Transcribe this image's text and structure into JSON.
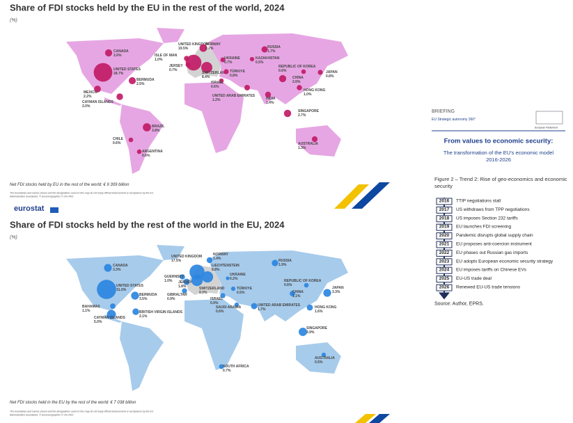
{
  "maps": [
    {
      "title": "Share of FDI stocks held by the EU in the rest of the world, 2024",
      "unit": "(%)",
      "points": [
        {
          "name": "CANADA",
          "value": 2.6,
          "value_label": "2.6%"
        },
        {
          "name": "UNITED STATES",
          "value": 28.7,
          "value_label": "28.7%"
        },
        {
          "name": "BERMUDA",
          "value": 2.5,
          "value_label": "2.5%"
        },
        {
          "name": "MEXICO",
          "value": 2.2,
          "value_label": "2.2%"
        },
        {
          "name": "CAYMAN ISLANDS",
          "value": 2.0,
          "value_label": "2.0%"
        },
        {
          "name": "BRAZIL",
          "value": 3.8,
          "value_label": "3.8%"
        },
        {
          "name": "CHILE",
          "value": 0.6,
          "value_label": "0.6%"
        },
        {
          "name": "ARGENTINA",
          "value": 0.6,
          "value_label": "0.6%"
        },
        {
          "name": "UNITED KINGDOM",
          "value": 19.5,
          "value_label": "19.5%"
        },
        {
          "name": "ISLE OF MAN",
          "value": 1.0,
          "value_label": "1.0%"
        },
        {
          "name": "JERSEY",
          "value": 0.7,
          "value_label": "0.7%"
        },
        {
          "name": "NORWAY",
          "value": 3.2,
          "value_label": "3.2%"
        },
        {
          "name": "SWITZERLAND",
          "value": 8.4,
          "value_label": "8.4%"
        },
        {
          "name": "UKRAINE",
          "value": 0.7,
          "value_label": "0.7%"
        },
        {
          "name": "TÜRKIYE",
          "value": 0.8,
          "value_label": "0.8%"
        },
        {
          "name": "ISRAEL",
          "value": 0.6,
          "value_label": "0.6%"
        },
        {
          "name": "UNITED ARAB EMIRATES",
          "value": 1.2,
          "value_label": "1.2%"
        },
        {
          "name": "RUSSIA",
          "value": 1.7,
          "value_label": "1.7%"
        },
        {
          "name": "KAZAKHSTAN",
          "value": 0.5,
          "value_label": "0.5%"
        },
        {
          "name": "REPUBLIC OF KOREA",
          "value": 0.6,
          "value_label": "0.6%"
        },
        {
          "name": "JAPAN",
          "value": 0.8,
          "value_label": "0.8%"
        },
        {
          "name": "CHINA",
          "value": 2.6,
          "value_label": "2.6%"
        },
        {
          "name": "HONG KONG",
          "value": 1.0,
          "value_label": "1.0%"
        },
        {
          "name": "INDIA",
          "value": 1.4,
          "value_label": "1.4%"
        },
        {
          "name": "SINGAPORE",
          "value": 2.7,
          "value_label": "2.7%"
        },
        {
          "name": "AUSTRALIA",
          "value": 1.3,
          "value_label": "1.3%"
        }
      ],
      "total_note": "Net FDI stocks held by EU in the rest of the world: € 9 309 billion",
      "disclaimer": "The boundaries and names shown and the designations used on this map do not imply official endorsement or acceptance by the EU.",
      "copyright": "Administrative boundaries: © EuroGeographics © UN–FAO"
    },
    {
      "title": "Share of FDI stocks held by the rest of the world in the EU, 2024",
      "unit": "(%)",
      "points": [
        {
          "name": "CANADA",
          "value": 3.3,
          "value_label": "3.3%"
        },
        {
          "name": "UNITED STATES",
          "value": 31.0,
          "value_label": "31.0%"
        },
        {
          "name": "BERMUDA",
          "value": 3.5,
          "value_label": "3.5%"
        },
        {
          "name": "BAHAMAS",
          "value": 1.1,
          "value_label": "1.1%"
        },
        {
          "name": "BRITISH VIRGIN ISLANDS",
          "value": 2.1,
          "value_label": "2.1%"
        },
        {
          "name": "CAYMAN ISLANDS",
          "value": 5.0,
          "value_label": "5.0%"
        },
        {
          "name": "UNITED KINGDOM",
          "value": 17.5,
          "value_label": "17.5%"
        },
        {
          "name": "NORWAY",
          "value": 1.4,
          "value_label": "1.4%"
        },
        {
          "name": "LIECHTENSTEIN",
          "value": 8.8,
          "value_label": "8.8%"
        },
        {
          "name": "GUERNSEY",
          "value": 1.0,
          "value_label": "1.0%"
        },
        {
          "name": "JERSEY",
          "value": 1.8,
          "value_label": "1.8%"
        },
        {
          "name": "SWITZERLAND",
          "value": 9.0,
          "value_label": "9.0%"
        },
        {
          "name": "GIBRALTAR",
          "value": 0.9,
          "value_label": "0.9%"
        },
        {
          "name": "ISRAEL",
          "value": 0.9,
          "value_label": "0.9%"
        },
        {
          "name": "TÜRKIYE",
          "value": 0.5,
          "value_label": "0.5%"
        },
        {
          "name": "UKRAINE",
          "value": 0.2,
          "value_label": "0.2%"
        },
        {
          "name": "SAUDI ARABIA",
          "value": 0.6,
          "value_label": "0.6%"
        },
        {
          "name": "UNITED ARAB EMIRATES",
          "value": 1.7,
          "value_label": "1.7%"
        },
        {
          "name": "RUSSIA",
          "value": 1.9,
          "value_label": "1.9%"
        },
        {
          "name": "REPUBLIC OF KOREA",
          "value": 0.6,
          "value_label": "0.6%"
        },
        {
          "name": "JAPAN",
          "value": 3.3,
          "value_label": "3.3%"
        },
        {
          "name": "CHINA",
          "value": 1.1,
          "value_label": "1.1%"
        },
        {
          "name": "HONG KONG",
          "value": 1.6,
          "value_label": "1.6%"
        },
        {
          "name": "SINGAPORE",
          "value": 3.9,
          "value_label": "3.9%"
        },
        {
          "name": "SOUTH AFRICA",
          "value": 0.7,
          "value_label": "0.7%"
        },
        {
          "name": "AUSTRALIA",
          "value": 0.5,
          "value_label": "0.5%"
        }
      ],
      "total_note": "Net FDI stocks held in the EU by the rest of the world: € 7 038 billion",
      "disclaimer": "The boundaries and names shown and the designations used on this map do not imply official endorsement or acceptance by the EU.",
      "copyright": "Administrative boundaries: © EuroGeographics © UN–FAO"
    }
  ],
  "logo": "eurostat",
  "briefing": {
    "label": "BRIEFING",
    "series": "EU Strategic autonomy 360°",
    "institution": "European Parliament",
    "heading": "From values to economic security:",
    "subheading": "The transformation of the EU's economic model 2016-2026",
    "figure_title": "Figure 2 – Trend 2: Rise of geo-economics and economic security",
    "timeline": [
      {
        "year": "2016",
        "event": "TTIP negotiations stall"
      },
      {
        "year": "2017",
        "event": "US withdraws from TPP negotiations"
      },
      {
        "year": "2018",
        "event": "US imposes Section 232 tariffs"
      },
      {
        "year": "2019",
        "event": "EU launches FDI screening"
      },
      {
        "year": "2020",
        "event": "Pandemic disrupts global supply chain"
      },
      {
        "year": "2021",
        "event": "EU proposes anti-coercion instrument"
      },
      {
        "year": "2022",
        "event": "EU phases out Russian gas imports"
      },
      {
        "year": "2023",
        "event": "EU adopts European economic security strategy"
      },
      {
        "year": "2024",
        "event": "EU imposes tariffs on Chinese EVs"
      },
      {
        "year": "2025",
        "event": "EU-US trade deal"
      },
      {
        "year": "2026",
        "event": "Renewed EU-US trade tensions"
      }
    ],
    "source": "Source: Author, EPRS."
  }
}
